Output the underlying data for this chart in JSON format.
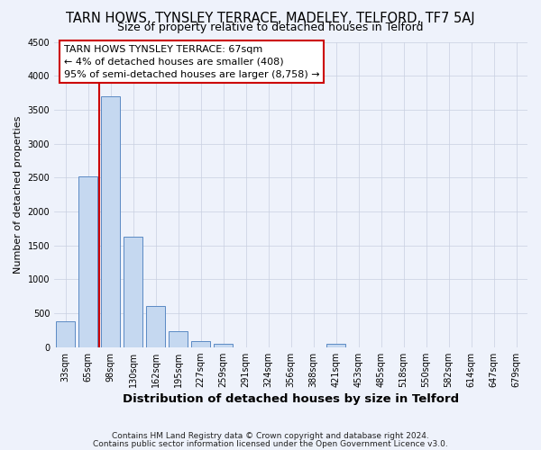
{
  "title": "TARN HOWS, TYNSLEY TERRACE, MADELEY, TELFORD, TF7 5AJ",
  "subtitle": "Size of property relative to detached houses in Telford",
  "xlabel": "Distribution of detached houses by size in Telford",
  "ylabel": "Number of detached properties",
  "bar_labels": [
    "33sqm",
    "65sqm",
    "98sqm",
    "130sqm",
    "162sqm",
    "195sqm",
    "227sqm",
    "259sqm",
    "291sqm",
    "324sqm",
    "356sqm",
    "388sqm",
    "421sqm",
    "453sqm",
    "485sqm",
    "518sqm",
    "550sqm",
    "582sqm",
    "614sqm",
    "647sqm",
    "679sqm"
  ],
  "bar_values": [
    380,
    2520,
    3700,
    1630,
    600,
    240,
    90,
    55,
    0,
    0,
    0,
    0,
    55,
    0,
    0,
    0,
    0,
    0,
    0,
    0,
    0
  ],
  "ylim": [
    0,
    4500
  ],
  "yticks": [
    0,
    500,
    1000,
    1500,
    2000,
    2500,
    3000,
    3500,
    4000,
    4500
  ],
  "bar_color": "#c5d8f0",
  "bar_edgecolor": "#5b8ac4",
  "property_line_x": 1.5,
  "property_line_color": "#cc0000",
  "annotation_title": "TARN HOWS TYNSLEY TERRACE: 67sqm",
  "annotation_line1": "← 4% of detached houses are smaller (408)",
  "annotation_line2": "95% of semi-detached houses are larger (8,758) →",
  "footer1": "Contains HM Land Registry data © Crown copyright and database right 2024.",
  "footer2": "Contains public sector information licensed under the Open Government Licence v3.0.",
  "background_color": "#eef2fb",
  "grid_color": "#c8cfe0",
  "title_fontsize": 10.5,
  "subtitle_fontsize": 9,
  "xlabel_fontsize": 9.5,
  "ylabel_fontsize": 8,
  "tick_fontsize": 7,
  "annotation_fontsize": 8,
  "footer_fontsize": 6.5
}
